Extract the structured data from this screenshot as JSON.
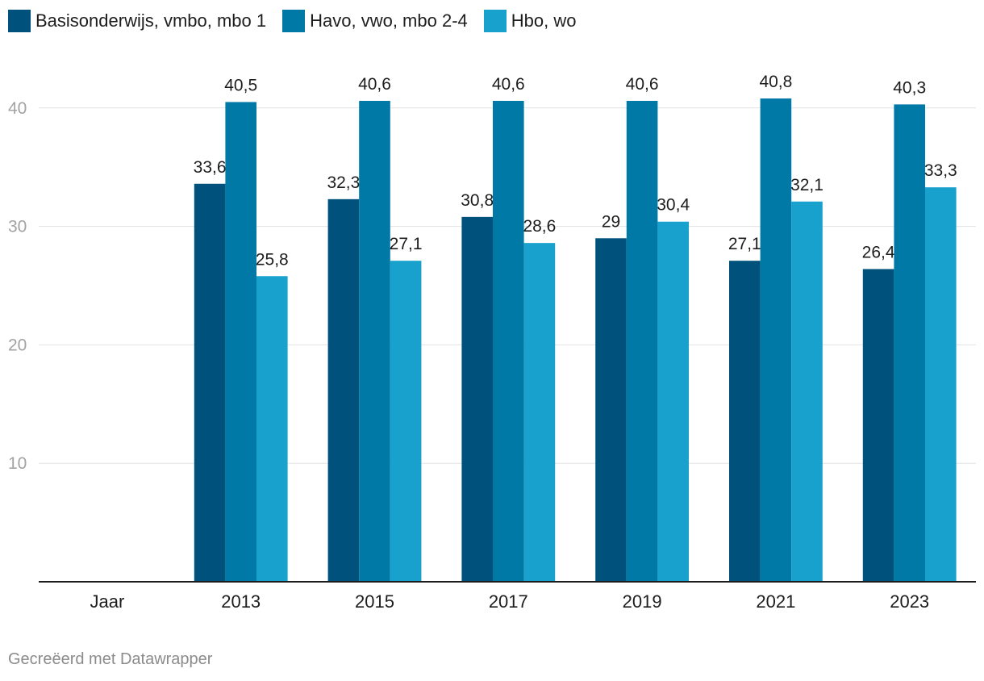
{
  "chart_data": {
    "type": "bar",
    "categories": [
      "Jaar",
      "2013",
      "2015",
      "2017",
      "2019",
      "2021",
      "2023"
    ],
    "series": [
      {
        "name": "Basisonderwijs, vmbo, mbo 1",
        "color": "#00527c",
        "values": [
          null,
          33.6,
          32.3,
          30.8,
          29,
          27.1,
          26.4
        ],
        "labels": [
          "",
          "33,6",
          "32,3",
          "30,8",
          "29",
          "27,1",
          "26,4"
        ]
      },
      {
        "name": "Havo, vwo, mbo 2-4",
        "color": "#0079a6",
        "values": [
          null,
          40.5,
          40.6,
          40.6,
          40.6,
          40.8,
          40.3
        ],
        "labels": [
          "",
          "40,5",
          "40,6",
          "40,6",
          "40,6",
          "40,8",
          "40,3"
        ]
      },
      {
        "name": "Hbo, wo",
        "color": "#18a1cd",
        "values": [
          null,
          25.8,
          27.1,
          28.6,
          30.4,
          32.1,
          33.3
        ],
        "labels": [
          "",
          "25,8",
          "27,1",
          "28,6",
          "30,4",
          "32,1",
          "33,3"
        ]
      }
    ],
    "y_ticks": [
      10,
      20,
      30,
      40
    ],
    "ylim": [
      0,
      44
    ],
    "grid": true,
    "legend": "top-left"
  },
  "footer": "Gecreëerd met Datawrapper"
}
